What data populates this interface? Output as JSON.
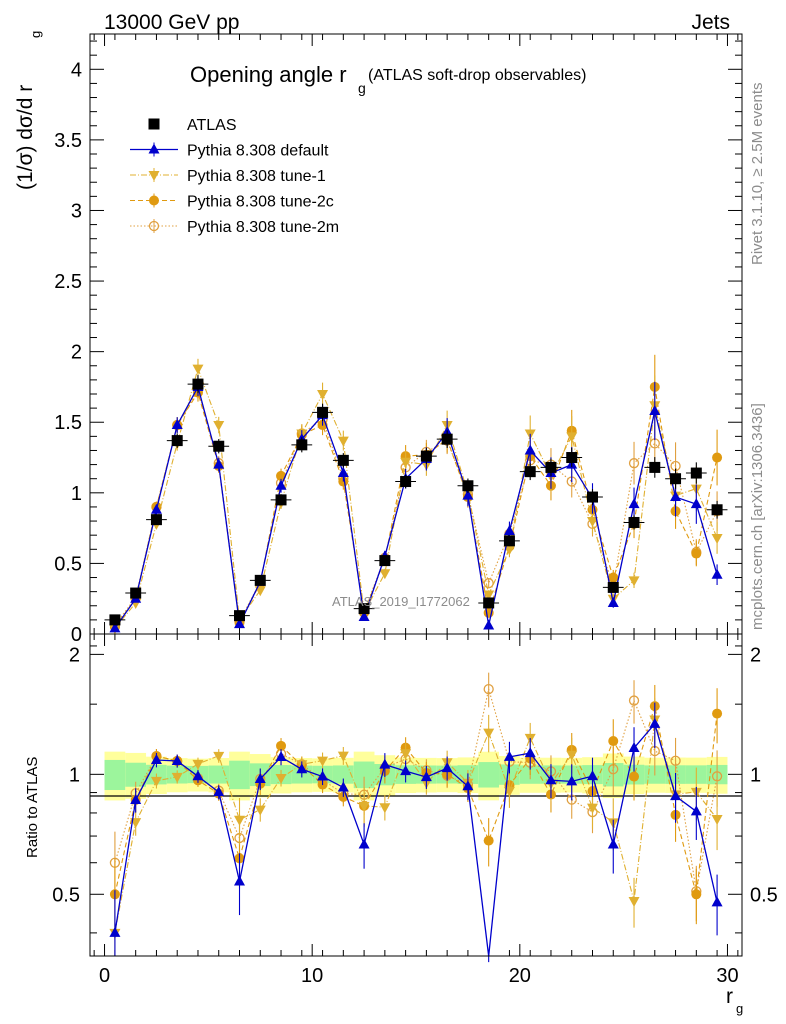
{
  "header": {
    "left": "13000 GeV pp",
    "right": "Jets"
  },
  "side_labels": {
    "rivet": "Rivet 3.1.10, ≥ 2.5M events",
    "mcplots": "mcplots.cern.ch [arXiv:1306.3436]"
  },
  "chart_data": {
    "type": "scatter",
    "title_main": "Opening angle r",
    "title_sub": "g",
    "title_paren": " (ATLAS soft-drop observables)",
    "ylabel": "(1/σ) dσ/d r",
    "ylabel_sub": "g",
    "ratio_ylabel": "Ratio to ATLAS",
    "xlabel": "r",
    "xlabel_sub": "g",
    "analysis_id": "ATLAS_2019_I1772062",
    "xlim": [
      -0.7,
      30.7
    ],
    "ylim": [
      0,
      4.25
    ],
    "ratio_ylim": [
      0.35,
      2.25
    ],
    "x_ticks": [
      "0",
      "10",
      "20",
      "30"
    ],
    "y_ticks": [
      "0",
      "0.5",
      "1",
      "1.5",
      "2",
      "2.5",
      "3",
      "3.5",
      "4"
    ],
    "ratio_ticks": [
      "0.5",
      "1",
      "2"
    ],
    "x": [
      0.5,
      1.5,
      2.5,
      3.5,
      4.5,
      5.5,
      6.5,
      7.5,
      8.5,
      9.5,
      10.5,
      11.5,
      12.5,
      13.5,
      14.5,
      15.5,
      16.5,
      17.5,
      18.5,
      19.5,
      20.5,
      21.5,
      22.5,
      23.5,
      24.5,
      25.5,
      26.5,
      27.5,
      28.5,
      29.5
    ],
    "series": [
      {
        "name": "ATLAS",
        "color": "#000000",
        "values": [
          0.1,
          0.29,
          0.81,
          1.37,
          1.77,
          1.33,
          0.13,
          0.38,
          0.95,
          1.34,
          1.57,
          1.23,
          0.18,
          0.52,
          1.08,
          1.26,
          1.38,
          1.05,
          0.22,
          0.66,
          1.15,
          1.18,
          1.25,
          0.97,
          0.33,
          0.79,
          1.18,
          1.1,
          1.14,
          0.88
        ]
      },
      {
        "name": "Pythia 8.308 default",
        "color": "#0000cc",
        "values": [
          0.04,
          0.25,
          0.88,
          1.48,
          1.75,
          1.2,
          0.07,
          0.37,
          1.05,
          1.38,
          1.55,
          1.14,
          0.12,
          0.55,
          1.1,
          1.24,
          1.43,
          0.98,
          0.06,
          0.73,
          1.3,
          1.14,
          1.2,
          0.96,
          0.22,
          0.92,
          1.58,
          0.97,
          0.92,
          0.42
        ]
      },
      {
        "name": "Pythia 8.308 tune-1",
        "color": "#e0b030",
        "values": [
          0.04,
          0.22,
          0.78,
          1.35,
          1.88,
          1.48,
          0.1,
          0.31,
          0.93,
          1.42,
          1.7,
          1.37,
          0.15,
          0.43,
          1.22,
          1.2,
          1.48,
          1.0,
          0.28,
          0.6,
          1.42,
          1.12,
          1.4,
          0.8,
          0.25,
          0.38,
          1.62,
          0.98,
          1.03,
          0.68
        ]
      },
      {
        "name": "Pythia 8.308 tune-2c",
        "color": "#e09a10",
        "values": [
          0.05,
          0.25,
          0.9,
          1.48,
          1.71,
          1.19,
          0.08,
          0.36,
          1.12,
          1.41,
          1.48,
          1.08,
          0.15,
          0.53,
          1.26,
          1.27,
          1.38,
          0.97,
          0.15,
          0.62,
          1.26,
          1.05,
          1.44,
          0.88,
          0.4,
          0.78,
          1.75,
          0.87,
          0.57,
          1.25
        ]
      },
      {
        "name": "Pythia 8.308 tune-2m",
        "color": "#e0a040",
        "values": [
          0.06,
          0.26,
          0.9,
          1.48,
          1.73,
          1.21,
          0.09,
          0.37,
          1.07,
          1.42,
          1.52,
          1.1,
          0.16,
          0.54,
          1.18,
          1.29,
          1.37,
          0.99,
          0.36,
          0.71,
          1.23,
          1.2,
          1.08,
          0.78,
          0.34,
          1.21,
          1.35,
          1.19,
          0.58,
          0.87
        ]
      }
    ]
  }
}
